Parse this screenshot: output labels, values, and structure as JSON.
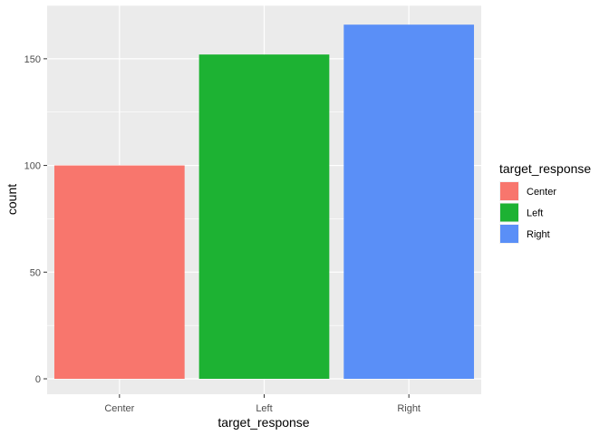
{
  "chart_data": {
    "type": "bar",
    "categories": [
      "Center",
      "Left",
      "Right"
    ],
    "values": [
      100,
      152,
      166
    ],
    "colors": [
      "#F8766D",
      "#1DB233",
      "#5A8FF7"
    ],
    "xlabel": "target_response",
    "ylabel": "count",
    "ylim": [
      0,
      175
    ],
    "yticks": [
      0,
      50,
      100,
      150
    ],
    "grid": true,
    "legend": {
      "title": "target_response",
      "placement": "right",
      "entries": [
        "Center",
        "Left",
        "Right"
      ]
    },
    "panel_background": "#EBEBEB",
    "grid_color": "#FFFFFF"
  }
}
